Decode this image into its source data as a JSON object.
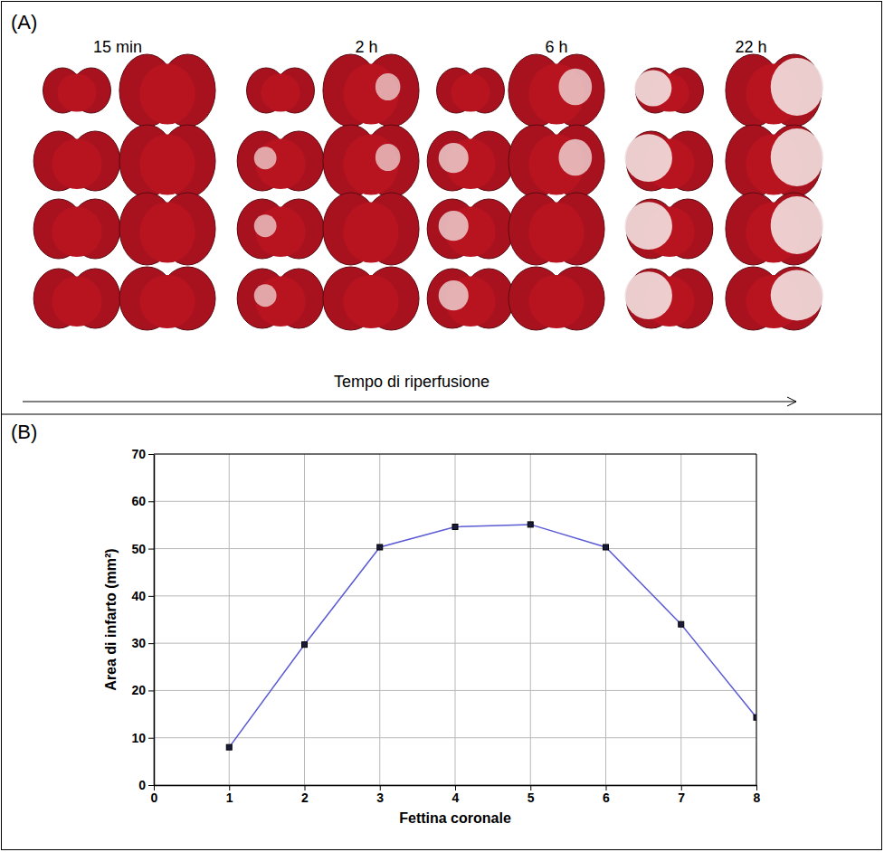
{
  "panels": {
    "A": {
      "label": "(A)",
      "time_points": [
        "15 min",
        "2 h",
        "6 h",
        "22 h"
      ],
      "arrow_label": "Tempo di riperfusione"
    },
    "B": {
      "label": "(B)"
    }
  },
  "chart_data": {
    "type": "line",
    "x": [
      1,
      2,
      3,
      4,
      5,
      6,
      7,
      8
    ],
    "values": [
      8,
      29.7,
      50.3,
      54.6,
      55.1,
      50.3,
      34,
      14.3
    ],
    "color": "#5b5bd6",
    "marker": "square",
    "line_style": "solid",
    "xlabel": "Fettina coronale",
    "ylabel": "Area di infarto (mm²)",
    "xlim": [
      0,
      8
    ],
    "ylim": [
      0,
      70
    ],
    "xticks": [
      0,
      1,
      2,
      3,
      4,
      5,
      6,
      7,
      8
    ],
    "yticks": [
      0,
      10,
      20,
      30,
      40,
      50,
      60,
      70
    ],
    "grid": true
  }
}
